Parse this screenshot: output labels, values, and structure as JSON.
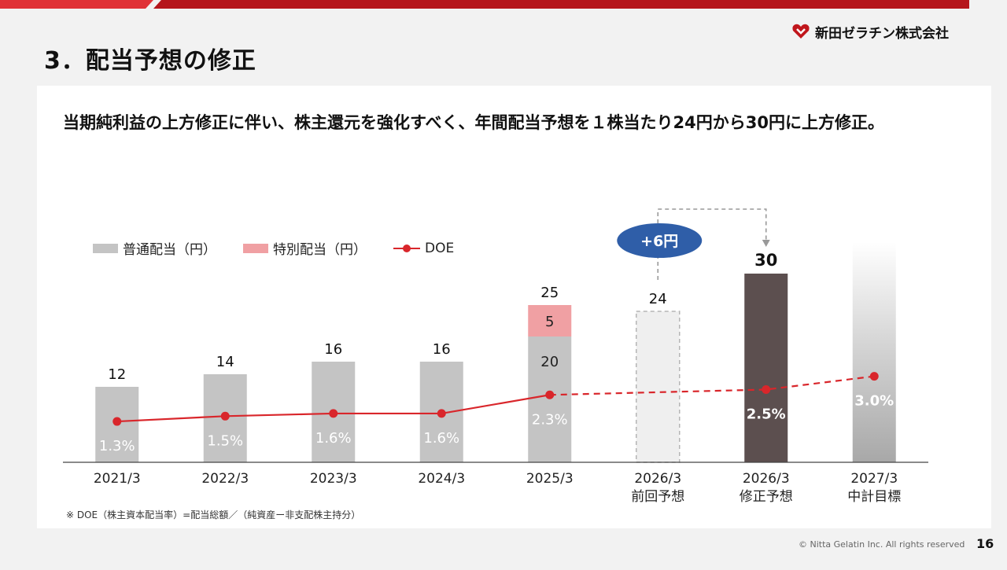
{
  "header": {
    "title": "3．配当予想の修正",
    "company": "新田ゼラチン株式会社"
  },
  "lead": "当期純利益の上方修正に伴い、株主還元を強化すべく、年間配当予想を１株当たり24円から30円に上方修正。",
  "colors": {
    "ordinary": "#c4c4c4",
    "special": "#f0a0a3",
    "doe": "#d9262b",
    "revised": "#5c4f4f",
    "badge": "#2f5ea8",
    "brand_red": "#c0161c"
  },
  "legend": {
    "ordinary": "普通配当（円）",
    "special": "特別配当（円）",
    "doe": "DOE"
  },
  "badge": "+6円",
  "chart_data": {
    "type": "bar",
    "title": "",
    "ylabel": "",
    "ylim": [
      0,
      32
    ],
    "categories": [
      {
        "line1": "2021/3",
        "line2": ""
      },
      {
        "line1": "2022/3",
        "line2": ""
      },
      {
        "line1": "2023/3",
        "line2": ""
      },
      {
        "line1": "2024/3",
        "line2": ""
      },
      {
        "line1": "2025/3",
        "line2": ""
      },
      {
        "line1": "2026/3",
        "line2": "前回予想"
      },
      {
        "line1": "2026/3",
        "line2": "修正予想"
      },
      {
        "line1": "2027/3",
        "line2": "中計目標"
      }
    ],
    "series": [
      {
        "name": "普通配当（円）",
        "values": [
          12,
          14,
          16,
          16,
          20,
          24,
          30,
          null
        ]
      },
      {
        "name": "特別配当（円）",
        "values": [
          0,
          0,
          0,
          0,
          5,
          0,
          0,
          0
        ]
      }
    ],
    "totals": [
      "12",
      "14",
      "16",
      "16",
      "25",
      "24",
      "30",
      ""
    ],
    "segment_labels": [
      "",
      "",
      "",
      "",
      "20",
      "",
      "",
      ""
    ],
    "special_labels": [
      "",
      "",
      "",
      "",
      "5",
      "",
      "",
      ""
    ],
    "bar_style": [
      "solid",
      "solid",
      "solid",
      "solid",
      "solid",
      "dashed",
      "revised",
      "gradient"
    ],
    "doe": {
      "name": "DOE",
      "values": [
        1.3,
        1.5,
        1.6,
        1.6,
        2.3,
        null,
        2.5,
        3.0
      ],
      "labels": [
        "1.3%",
        "1.5%",
        "1.6%",
        "1.6%",
        "2.3%",
        "",
        "2.5%",
        "3.0%"
      ],
      "actual_through_index": 4
    }
  },
  "footnote": "※ DOE（株主資本配当率）=配当総額／（純資産ー非支配株主持分）",
  "footer": {
    "copyright": "© Nitta Gelatin Inc. All rights reserved",
    "page": "16"
  }
}
